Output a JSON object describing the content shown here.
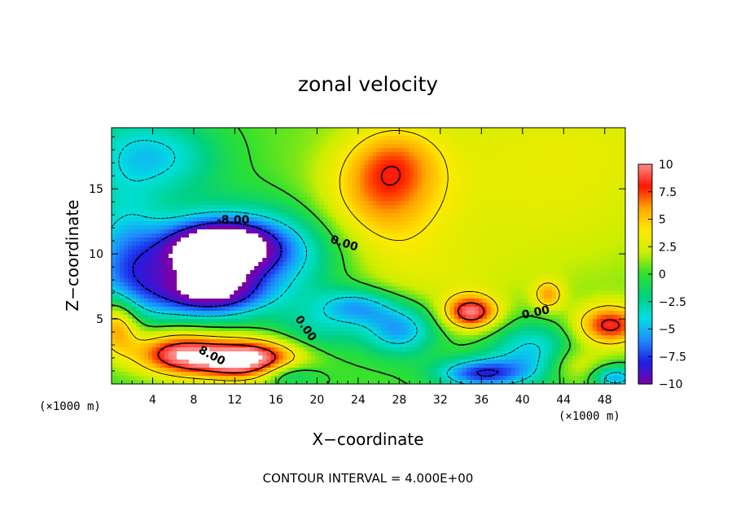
{
  "chart_data": {
    "type": "heatmap",
    "title": "zonal velocity",
    "xlabel": "X−coordinate",
    "ylabel": "Z−coordinate",
    "x_unit_label": "(×1000 m)",
    "x_ticks": [
      4,
      8,
      12,
      16,
      20,
      24,
      28,
      32,
      36,
      40,
      44,
      48
    ],
    "y_ticks": [
      5,
      10,
      15
    ],
    "xlim": [
      0,
      50
    ],
    "ylim": [
      0,
      19.7
    ],
    "colorbar": {
      "ticks": [
        "10",
        "7.5",
        "5",
        "2.5",
        "0",
        "−2.5",
        "−5",
        "−7.5",
        "−10"
      ],
      "vmin": -10,
      "vmax": 10,
      "colors": [
        "#7a00a8",
        "#1e1ee6",
        "#1e8cff",
        "#00e0e0",
        "#00d080",
        "#2ee02e",
        "#ccee00",
        "#ffea00",
        "#ffa500",
        "#ff1400",
        "#ff8c8c"
      ]
    },
    "contour_interval": "CONTOUR INTERVAL = 4.000E+00",
    "contour_labels": [
      "-8.00",
      "0.00",
      "0.00",
      "8.00",
      "0.00"
    ],
    "features": [
      {
        "x": 10.5,
        "z": 10.5,
        "value": -11,
        "sx": 3.5,
        "sy": 1.3
      },
      {
        "x": 13.0,
        "z": 10.2,
        "value": -7,
        "sx": 6.5,
        "sy": 2.4
      },
      {
        "x": 10.0,
        "z": 7.0,
        "value": -7,
        "sx": 3.5,
        "sy": 1.2
      },
      {
        "x": 5.0,
        "z": 17.5,
        "value": -4,
        "sx": 4.0,
        "sy": 2.0
      },
      {
        "x": 0.8,
        "z": 15.0,
        "value": -2,
        "sx": 3.0,
        "sy": 6.0
      },
      {
        "x": 6.0,
        "z": 7.5,
        "value": -4,
        "sx": 5.0,
        "sy": 2.0
      },
      {
        "x": 1.5,
        "z": 9.0,
        "value": -3,
        "sx": 2.5,
        "sy": 3.0
      },
      {
        "x": 26.0,
        "z": 14.0,
        "value": 4.5,
        "sx": 4.0,
        "sy": 3.0
      },
      {
        "x": 27.5,
        "z": 17.0,
        "value": 3.5,
        "sx": 3.0,
        "sy": 2.0
      },
      {
        "x": 44.0,
        "z": 19.0,
        "value": 2.2,
        "sx": 14.0,
        "sy": 4.0
      },
      {
        "x": 40.0,
        "z": 12.0,
        "value": 1.8,
        "sx": 12.0,
        "sy": 4.0
      },
      {
        "x": 30.0,
        "z": 8.0,
        "value": 1.5,
        "sx": 6.0,
        "sy": 2.0
      },
      {
        "x": 12.0,
        "z": 2.0,
        "value": 9,
        "sx": 5.0,
        "sy": 1.1
      },
      {
        "x": 13.5,
        "z": 1.7,
        "value": 4,
        "sx": 3.0,
        "sy": 1.0
      },
      {
        "x": 6.0,
        "z": 2.5,
        "value": 6,
        "sx": 3.0,
        "sy": 1.2
      },
      {
        "x": 0.5,
        "z": 4.5,
        "value": 7,
        "sx": 1.5,
        "sy": 1.5
      },
      {
        "x": 35.0,
        "z": 5.5,
        "value": 9,
        "sx": 1.8,
        "sy": 0.9
      },
      {
        "x": 48.5,
        "z": 4.5,
        "value": 8,
        "sx": 2.3,
        "sy": 1.1
      },
      {
        "x": 42.5,
        "z": 6.8,
        "value": 5,
        "sx": 1.0,
        "sy": 0.8
      },
      {
        "x": 36.0,
        "z": 0.8,
        "value": -8,
        "sx": 3.0,
        "sy": 0.8
      },
      {
        "x": 28.0,
        "z": 4.2,
        "value": -6,
        "sx": 2.5,
        "sy": 1.4
      },
      {
        "x": 24.0,
        "z": 6.0,
        "value": -5,
        "sx": 2.5,
        "sy": 1.0
      },
      {
        "x": 41.0,
        "z": 2.5,
        "value": -5,
        "sx": 3.0,
        "sy": 1.6
      },
      {
        "x": 20.0,
        "z": 4.0,
        "value": -3,
        "sx": 3.0,
        "sy": 2.0
      },
      {
        "x": 49.0,
        "z": 0.5,
        "value": -6,
        "sx": 1.5,
        "sy": 0.6
      },
      {
        "x": 17.0,
        "z": 0.8,
        "value": -4,
        "sx": 2.0,
        "sy": 0.7
      },
      {
        "x": 45.0,
        "z": 1.5,
        "value": 3,
        "sx": 2.0,
        "sy": 1.0
      }
    ]
  }
}
